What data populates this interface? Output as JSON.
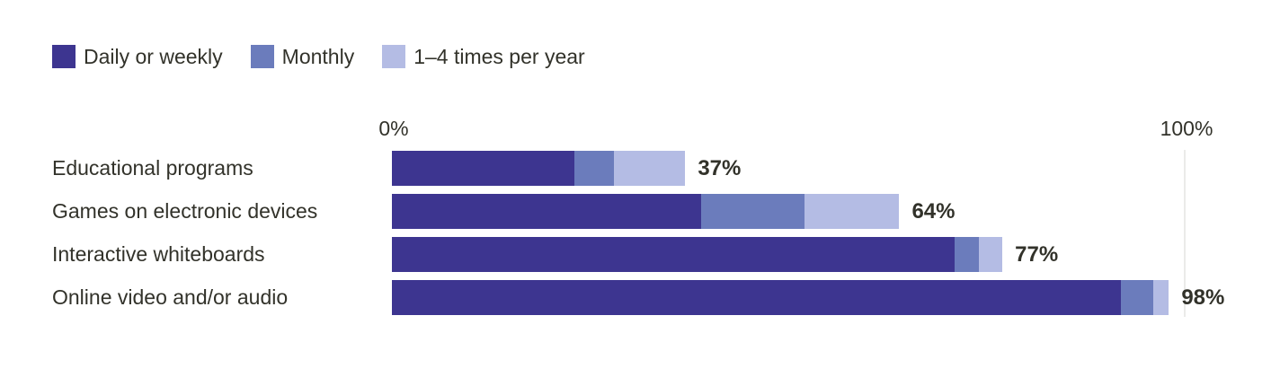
{
  "colors": {
    "background": "#ffffff",
    "text": "#32322a",
    "gridline": "#ebebe9",
    "daily_or_weekly": "#3d3590",
    "monthly": "#6b7cbc",
    "one_to_four_times": "#b4bce4"
  },
  "axis": {
    "zero_label": "0%",
    "hundred_label": "100%"
  },
  "chart_data": {
    "type": "bar",
    "orientation": "horizontal",
    "stacked": true,
    "title": "",
    "xlabel": "",
    "ylabel": "",
    "xlim": [
      0,
      100
    ],
    "grid": "single line at 100%",
    "legend_position": "top-left",
    "categories": [
      "Educational programs",
      "Games on electronic devices",
      "Interactive whiteboards",
      "Online video and/or audio"
    ],
    "series": [
      {
        "name": "Daily or weekly",
        "color": "#3d3590",
        "values": [
          23,
          39,
          71,
          92
        ]
      },
      {
        "name": "Monthly",
        "color": "#6b7cbc",
        "values": [
          5,
          13,
          3,
          4
        ]
      },
      {
        "name": "1–4 times per year",
        "color": "#b4bce4",
        "values": [
          9,
          12,
          3,
          2
        ]
      }
    ],
    "totals": [
      "37%",
      "64%",
      "77%",
      "98%"
    ]
  }
}
